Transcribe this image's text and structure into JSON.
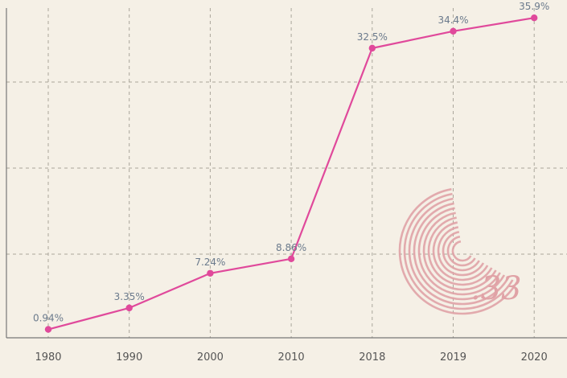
{
  "chart_data": {
    "type": "line",
    "categories": [
      "1980",
      "1990",
      "2000",
      "2010",
      "2018",
      "2019",
      "2020"
    ],
    "values": [
      0.94,
      3.35,
      7.24,
      8.86,
      32.5,
      34.4,
      35.9
    ],
    "data_labels": [
      "0.94%",
      "3.35%",
      "7.24%",
      "8.86%",
      "32.5%",
      "34.4%",
      "35.9%"
    ],
    "ylim": [
      0,
      37
    ],
    "grid": true,
    "line_color": "#e0499b",
    "logo_text": ".33",
    "logo_color": "#e0a2a6"
  }
}
